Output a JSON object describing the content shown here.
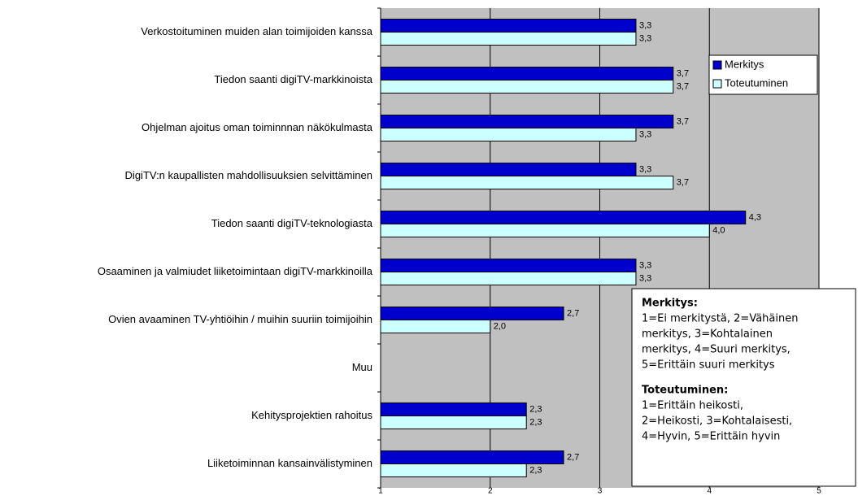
{
  "chart_data": {
    "type": "bar",
    "orientation": "horizontal",
    "categories": [
      "Verkostoituminen muiden alan toimijoiden kanssa",
      "Tiedon saanti digiTV-markkinoista",
      "Ohjelman ajoitus oman toiminnnan näkökulmasta",
      "DigiTV:n kaupallisten mahdollisuuksien selvittäminen",
      "Tiedon saanti digiTV-teknologiasta",
      "Osaaminen ja valmiudet liiketoimintaan digiTV-markkinoilla",
      "Ovien avaaminen TV-yhtiöihin / muihin suuriin toimijoihin",
      "Muu",
      "Kehitysprojektien rahoitus",
      "Liiketoiminnan kansainvälistyminen"
    ],
    "series": [
      {
        "name": "Merkitys",
        "color": "#0000cc",
        "values": [
          3.33,
          3.67,
          3.67,
          3.33,
          4.33,
          3.33,
          2.67,
          null,
          2.33,
          2.67
        ],
        "value_labels": [
          "3,3",
          "3,7",
          "3,7",
          "3,3",
          "4,3",
          "3,3",
          "2,7",
          null,
          "2,3",
          "2,7"
        ]
      },
      {
        "name": "Toteutuminen",
        "color": "#ccffff",
        "values": [
          3.33,
          3.67,
          3.33,
          3.67,
          4.0,
          3.33,
          2.0,
          null,
          2.33,
          2.33
        ],
        "value_labels": [
          "3,3",
          "3,7",
          "3,3",
          "3,7",
          "4,0",
          "3,3",
          "2,0",
          null,
          "2,3",
          "2,3"
        ]
      }
    ],
    "xlim": [
      1,
      5
    ],
    "xticks": [
      1,
      2,
      3,
      4,
      5
    ],
    "grid": true,
    "legend": "upper right",
    "notes": [
      {
        "heading": "Merkitys:",
        "lines": [
          "1=Ei merkitystä, 2=Vähäinen",
          "merkitys, 3=Kohtalainen",
          "merkitys, 4=Suuri merkitys,",
          "5=Erittäin suuri merkitys"
        ]
      },
      {
        "heading": "Toteutuminen:",
        "lines": [
          "1=Erittäin heikosti,",
          "2=Heikosti, 3=Kohtalaisesti,",
          "4=Hyvin, 5=Erittäin hyvin"
        ]
      }
    ]
  }
}
